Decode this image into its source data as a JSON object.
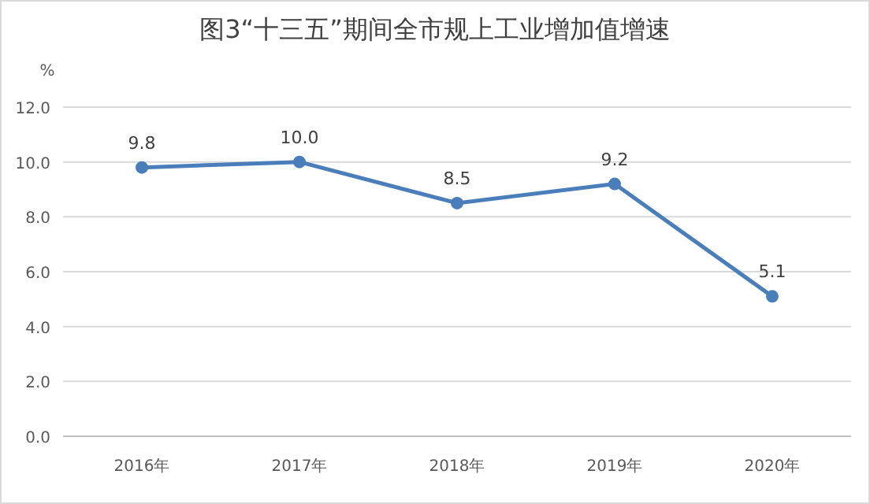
{
  "chart_data": {
    "type": "line",
    "title": "图3“十三五”期间全市规上工业增加值增速",
    "ylabel": "%",
    "categories": [
      "2016年",
      "2017年",
      "2018年",
      "2019年",
      "2020年"
    ],
    "series": [
      {
        "color": "#4a7ebb",
        "values": [
          9.8,
          10.0,
          8.5,
          9.2,
          5.1
        ],
        "value_labels": [
          "9.8",
          "10.0",
          "8.5",
          "9.2",
          "5.1"
        ]
      }
    ],
    "ylim": [
      0,
      12
    ],
    "yticks": [
      {
        "value": 0,
        "label": "0.0"
      },
      {
        "value": 2,
        "label": "2.0"
      },
      {
        "value": 4,
        "label": "4.0"
      },
      {
        "value": 6,
        "label": "6.0"
      },
      {
        "value": 8,
        "label": "8.0"
      },
      {
        "value": 10,
        "label": "10.0"
      },
      {
        "value": 12,
        "label": "12.0"
      }
    ],
    "grid": "y",
    "marker": "circle"
  }
}
